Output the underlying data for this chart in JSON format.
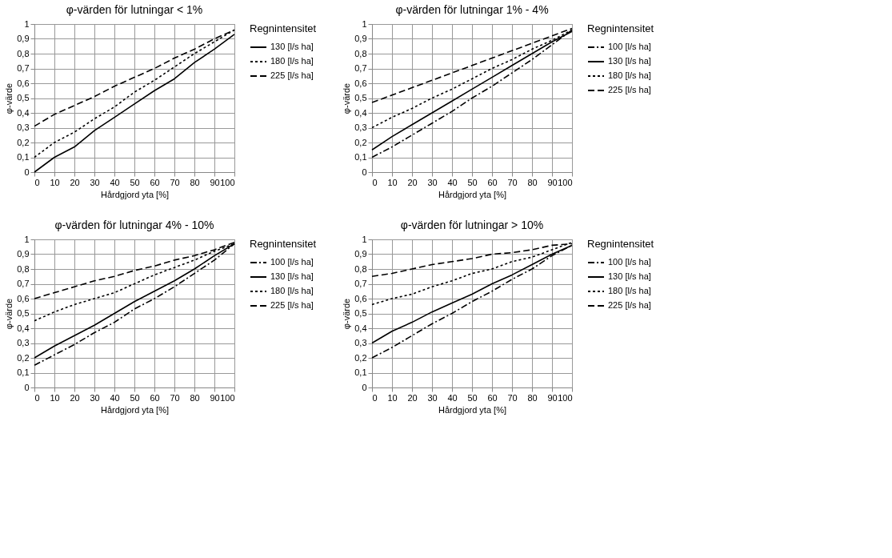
{
  "chart_data": [
    {
      "type": "line",
      "title": "φ-värden för lutningar < 1%",
      "xlabel": "Hårdgjord yta [%]",
      "ylabel": "φ-värde",
      "legend_title": "Regnintensitet",
      "legend": "right",
      "grid": true,
      "marker": "none",
      "x": [
        0,
        10,
        20,
        30,
        40,
        50,
        60,
        70,
        80,
        90,
        100
      ],
      "xlim": [
        0,
        100
      ],
      "xticks": [
        0,
        10,
        20,
        30,
        40,
        50,
        60,
        70,
        80,
        90,
        100
      ],
      "ylim": [
        0,
        1
      ],
      "yticks": [
        0,
        {
          "value": 0.1,
          "label": "0,1"
        },
        {
          "value": 0.2,
          "label": "0,2"
        },
        {
          "value": 0.3,
          "label": "0,3"
        },
        {
          "value": 0.4,
          "label": "0,4"
        },
        {
          "value": 0.5,
          "label": "0,5"
        },
        {
          "value": 0.6,
          "label": "0,6"
        },
        {
          "value": 0.7,
          "label": "0,7"
        },
        {
          "value": 0.8,
          "label": "0,8"
        },
        {
          "value": 0.9,
          "label": "0,9"
        },
        1
      ],
      "series": [
        {
          "name": "130 [l/s ha]",
          "color": "#000000",
          "line_style": "solid",
          "values": [
            0,
            0.1,
            0.17,
            0.28,
            0.37,
            0.46,
            0.55,
            0.63,
            0.74,
            0.83,
            0.93
          ]
        },
        {
          "name": "180 [l/s ha]",
          "color": "#000000",
          "line_style": "dotted",
          "values": [
            0.1,
            0.2,
            0.27,
            0.36,
            0.44,
            0.54,
            0.62,
            0.71,
            0.8,
            0.88,
            0.96
          ]
        },
        {
          "name": "225 [l/s ha]",
          "color": "#000000",
          "line_style": "dashed",
          "values": [
            0.31,
            0.39,
            0.45,
            0.51,
            0.58,
            0.64,
            0.7,
            0.77,
            0.83,
            0.9,
            0.96
          ]
        }
      ]
    },
    {
      "type": "line",
      "title": "φ-värden för lutningar 1% - 4%",
      "xlabel": "Hårdgjord yta [%]",
      "ylabel": "φ-värde",
      "legend_title": "Regnintensitet",
      "legend": "right",
      "grid": true,
      "marker": "none",
      "x": [
        0,
        10,
        20,
        30,
        40,
        50,
        60,
        70,
        80,
        90,
        100
      ],
      "xlim": [
        0,
        100
      ],
      "xticks": [
        0,
        10,
        20,
        30,
        40,
        50,
        60,
        70,
        80,
        90,
        100
      ],
      "ylim": [
        0,
        1
      ],
      "yticks": [
        0,
        {
          "value": 0.1,
          "label": "0,1"
        },
        {
          "value": 0.2,
          "label": "0,2"
        },
        {
          "value": 0.3,
          "label": "0,3"
        },
        {
          "value": 0.4,
          "label": "0,4"
        },
        {
          "value": 0.5,
          "label": "0,5"
        },
        {
          "value": 0.6,
          "label": "0,6"
        },
        {
          "value": 0.7,
          "label": "0,7"
        },
        {
          "value": 0.8,
          "label": "0,8"
        },
        {
          "value": 0.9,
          "label": "0,9"
        },
        1
      ],
      "series": [
        {
          "name": "100 [l/s ha]",
          "color": "#000000",
          "line_style": "dashdot",
          "values": [
            0.1,
            0.17,
            0.25,
            0.33,
            0.41,
            0.5,
            0.58,
            0.67,
            0.76,
            0.86,
            0.96
          ]
        },
        {
          "name": "130 [l/s ha]",
          "color": "#000000",
          "line_style": "solid",
          "values": [
            0.15,
            0.24,
            0.32,
            0.4,
            0.48,
            0.56,
            0.64,
            0.72,
            0.8,
            0.88,
            0.95
          ]
        },
        {
          "name": "180 [l/s ha]",
          "color": "#000000",
          "line_style": "dotted",
          "values": [
            0.3,
            0.37,
            0.43,
            0.5,
            0.56,
            0.63,
            0.7,
            0.76,
            0.83,
            0.89,
            0.96
          ]
        },
        {
          "name": "225 [l/s ha]",
          "color": "#000000",
          "line_style": "dashed",
          "values": [
            0.47,
            0.52,
            0.57,
            0.62,
            0.67,
            0.72,
            0.77,
            0.82,
            0.87,
            0.92,
            0.97
          ]
        }
      ]
    },
    {
      "type": "line",
      "title": "φ-värden för lutningar  4% - 10%",
      "xlabel": "Hårdgjord yta [%]",
      "ylabel": "φ-värde",
      "legend_title": "Regnintensitet",
      "legend": "right",
      "grid": true,
      "marker": "none",
      "x": [
        0,
        10,
        20,
        30,
        40,
        50,
        60,
        70,
        80,
        90,
        100
      ],
      "xlim": [
        0,
        100
      ],
      "xticks": [
        0,
        10,
        20,
        30,
        40,
        50,
        60,
        70,
        80,
        90,
        100
      ],
      "ylim": [
        0,
        1
      ],
      "yticks": [
        0,
        {
          "value": 0.1,
          "label": "0,1"
        },
        {
          "value": 0.2,
          "label": "0,2"
        },
        {
          "value": 0.3,
          "label": "0,3"
        },
        {
          "value": 0.4,
          "label": "0,4"
        },
        {
          "value": 0.5,
          "label": "0,5"
        },
        {
          "value": 0.6,
          "label": "0,6"
        },
        {
          "value": 0.7,
          "label": "0,7"
        },
        {
          "value": 0.8,
          "label": "0,8"
        },
        {
          "value": 0.9,
          "label": "0,9"
        },
        1
      ],
      "series": [
        {
          "name": "100 [l/s ha]",
          "color": "#000000",
          "line_style": "dashdot",
          "values": [
            0.15,
            0.22,
            0.29,
            0.37,
            0.44,
            0.53,
            0.6,
            0.68,
            0.77,
            0.86,
            0.97
          ]
        },
        {
          "name": "130 [l/s ha]",
          "color": "#000000",
          "line_style": "solid",
          "values": [
            0.2,
            0.28,
            0.35,
            0.42,
            0.5,
            0.58,
            0.65,
            0.72,
            0.8,
            0.89,
            0.97
          ]
        },
        {
          "name": "180 [l/s ha]",
          "color": "#000000",
          "line_style": "dotted",
          "values": [
            0.45,
            0.51,
            0.56,
            0.6,
            0.64,
            0.7,
            0.76,
            0.81,
            0.86,
            0.92,
            0.97
          ]
        },
        {
          "name": "225 [l/s ha]",
          "color": "#000000",
          "line_style": "dashed",
          "values": [
            0.6,
            0.64,
            0.68,
            0.72,
            0.75,
            0.79,
            0.82,
            0.86,
            0.89,
            0.93,
            0.98
          ]
        }
      ]
    },
    {
      "type": "line",
      "title": "φ-värden för lutningar > 10%",
      "xlabel": "Hårdgjord yta [%]",
      "ylabel": "φ-värde",
      "legend_title": "Regnintensitet",
      "legend": "right",
      "grid": true,
      "marker": "none",
      "x": [
        0,
        10,
        20,
        30,
        40,
        50,
        60,
        70,
        80,
        90,
        100
      ],
      "xlim": [
        0,
        100
      ],
      "xticks": [
        0,
        10,
        20,
        30,
        40,
        50,
        60,
        70,
        80,
        90,
        100
      ],
      "ylim": [
        0,
        1
      ],
      "yticks": [
        0,
        {
          "value": 0.1,
          "label": "0,1"
        },
        {
          "value": 0.2,
          "label": "0,2"
        },
        {
          "value": 0.3,
          "label": "0,3"
        },
        {
          "value": 0.4,
          "label": "0,4"
        },
        {
          "value": 0.5,
          "label": "0,5"
        },
        {
          "value": 0.6,
          "label": "0,6"
        },
        {
          "value": 0.7,
          "label": "0,7"
        },
        {
          "value": 0.8,
          "label": "0,8"
        },
        {
          "value": 0.9,
          "label": "0,9"
        },
        1
      ],
      "series": [
        {
          "name": "100 [l/s ha]",
          "color": "#000000",
          "line_style": "dashdot",
          "values": [
            0.2,
            0.27,
            0.35,
            0.43,
            0.5,
            0.58,
            0.65,
            0.73,
            0.8,
            0.89,
            0.96
          ]
        },
        {
          "name": "130 [l/s ha]",
          "color": "#000000",
          "line_style": "solid",
          "values": [
            0.3,
            0.38,
            0.44,
            0.51,
            0.57,
            0.63,
            0.7,
            0.76,
            0.83,
            0.9,
            0.96
          ]
        },
        {
          "name": "180 [l/s ha]",
          "color": "#000000",
          "line_style": "dotted",
          "values": [
            0.56,
            0.6,
            0.63,
            0.68,
            0.72,
            0.77,
            0.8,
            0.85,
            0.88,
            0.93,
            0.98
          ]
        },
        {
          "name": "225 [l/s ha]",
          "color": "#000000",
          "line_style": "dashed",
          "values": [
            0.75,
            0.77,
            0.8,
            0.83,
            0.85,
            0.87,
            0.9,
            0.91,
            0.93,
            0.96,
            0.97
          ]
        }
      ]
    }
  ]
}
